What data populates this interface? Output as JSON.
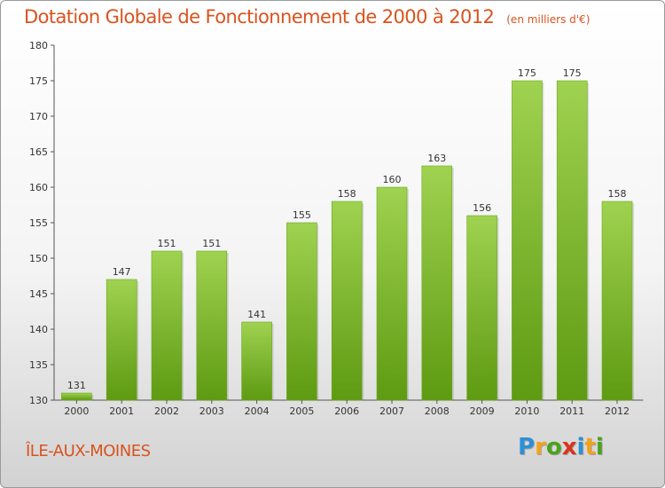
{
  "header": {
    "title": "Dotation Globale de Fonctionnement de 2000 à 2012",
    "unit": "(en milliers d'€)"
  },
  "footer": {
    "commune": "ÎLE-AUX-MOINES",
    "logo": {
      "letters": [
        "P",
        "r",
        "o",
        "x",
        "i",
        "t",
        "i"
      ],
      "colors": [
        "#2f8fd5",
        "#f2a21a",
        "#4aa31b",
        "#d9331e",
        "#2f8fd5",
        "#f2a21a",
        "#4aa31b"
      ]
    }
  },
  "colors": {
    "accent": "#d9531e",
    "bar_top": "#9fd250",
    "bar_bottom": "#5e9a12",
    "axis": "#555555"
  },
  "chart_data": {
    "type": "bar",
    "categories": [
      "2000",
      "2001",
      "2002",
      "2003",
      "2004",
      "2005",
      "2006",
      "2007",
      "2008",
      "2009",
      "2010",
      "2011",
      "2012"
    ],
    "values": [
      131,
      147,
      151,
      151,
      141,
      155,
      158,
      160,
      163,
      156,
      175,
      175,
      158
    ],
    "title": "Dotation Globale de Fonctionnement de 2000 à 2012",
    "xlabel": "",
    "ylabel": "",
    "ylim": [
      130,
      180
    ],
    "yticks": [
      130,
      135,
      140,
      145,
      150,
      155,
      160,
      165,
      170,
      175,
      180
    ],
    "grid": false,
    "legend": "none"
  }
}
